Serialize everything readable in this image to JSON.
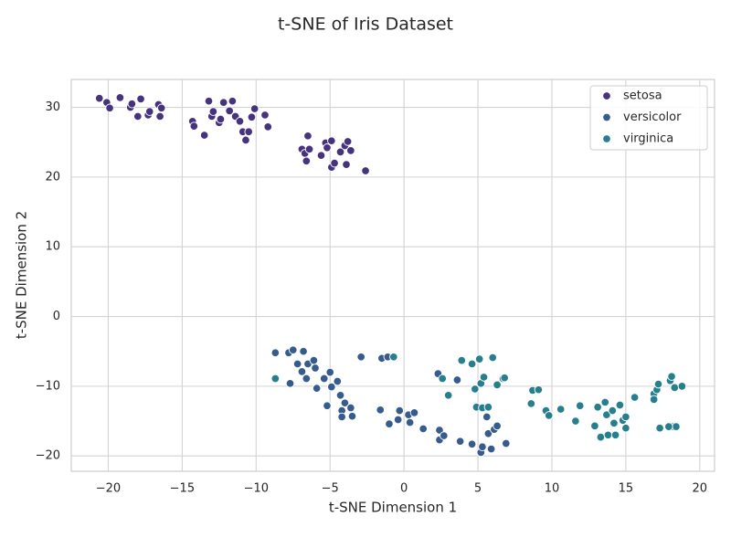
{
  "chart_data": {
    "type": "scatter",
    "title": "t-SNE of Iris Dataset",
    "xlabel": "t-SNE Dimension 1",
    "ylabel": "t-SNE Dimension 2",
    "xlim": [
      -22.5,
      21
    ],
    "ylim": [
      -22.2,
      34
    ],
    "xticks": [
      -20,
      -15,
      -10,
      -5,
      0,
      5,
      10,
      15,
      20
    ],
    "yticks": [
      -20,
      -10,
      0,
      10,
      20,
      30
    ],
    "grid": true,
    "legend_position": "top-right",
    "series": [
      {
        "name": "setosa",
        "color": "#46327e",
        "points": [
          [
            -20.6,
            31.3
          ],
          [
            -20.1,
            30.7
          ],
          [
            -19.9,
            29.9
          ],
          [
            -19.2,
            31.4
          ],
          [
            -18.5,
            30.0
          ],
          [
            -18.4,
            30.5
          ],
          [
            -18.0,
            28.7
          ],
          [
            -17.8,
            31.2
          ],
          [
            -17.3,
            28.9
          ],
          [
            -17.2,
            29.4
          ],
          [
            -16.6,
            30.4
          ],
          [
            -16.5,
            28.7
          ],
          [
            -16.4,
            29.9
          ],
          [
            -14.3,
            28.0
          ],
          [
            -14.2,
            27.3
          ],
          [
            -13.5,
            26.0
          ],
          [
            -13.2,
            30.9
          ],
          [
            -13.0,
            28.7
          ],
          [
            -12.9,
            29.4
          ],
          [
            -12.5,
            27.8
          ],
          [
            -12.4,
            28.3
          ],
          [
            -12.2,
            30.7
          ],
          [
            -11.8,
            29.5
          ],
          [
            -11.6,
            30.9
          ],
          [
            -11.4,
            28.7
          ],
          [
            -11.1,
            28.0
          ],
          [
            -10.9,
            26.5
          ],
          [
            -10.7,
            25.3
          ],
          [
            -10.5,
            26.5
          ],
          [
            -10.3,
            28.6
          ],
          [
            -10.1,
            29.8
          ],
          [
            -9.4,
            28.9
          ],
          [
            -9.2,
            27.2
          ],
          [
            -6.9,
            24.0
          ],
          [
            -6.7,
            23.4
          ],
          [
            -6.6,
            22.3
          ],
          [
            -6.5,
            25.9
          ],
          [
            -6.4,
            24.0
          ],
          [
            -5.6,
            23.1
          ],
          [
            -5.3,
            24.9
          ],
          [
            -5.2,
            24.2
          ],
          [
            -4.9,
            25.2
          ],
          [
            -4.9,
            21.4
          ],
          [
            -4.7,
            22.0
          ],
          [
            -4.3,
            23.6
          ],
          [
            -4.0,
            24.5
          ],
          [
            -3.9,
            21.8
          ],
          [
            -3.8,
            25.1
          ],
          [
            -3.6,
            23.8
          ],
          [
            -2.6,
            20.9
          ]
        ]
      },
      {
        "name": "versicolor",
        "color": "#365c8d",
        "points": [
          [
            -8.7,
            -5.2
          ],
          [
            -7.8,
            -5.2
          ],
          [
            -7.7,
            -9.6
          ],
          [
            -7.5,
            -4.8
          ],
          [
            -7.2,
            -6.8
          ],
          [
            -6.9,
            -7.9
          ],
          [
            -6.8,
            -5.0
          ],
          [
            -6.6,
            -8.9
          ],
          [
            -6.5,
            -6.8
          ],
          [
            -6.1,
            -6.3
          ],
          [
            -6.0,
            -7.4
          ],
          [
            -5.9,
            -10.3
          ],
          [
            -5.4,
            -8.9
          ],
          [
            -5.2,
            -12.8
          ],
          [
            -5.0,
            -8.0
          ],
          [
            -4.9,
            -10.1
          ],
          [
            -4.5,
            -9.3
          ],
          [
            -4.3,
            -11.3
          ],
          [
            -4.2,
            -13.5
          ],
          [
            -4.2,
            -14.4
          ],
          [
            -4.0,
            -12.4
          ],
          [
            -3.6,
            -13.1
          ],
          [
            -3.5,
            -14.3
          ],
          [
            -2.9,
            -5.8
          ],
          [
            -1.6,
            -13.4
          ],
          [
            -1.5,
            -6.0
          ],
          [
            -1.1,
            -5.8
          ],
          [
            -1.0,
            -15.4
          ],
          [
            -0.3,
            -13.5
          ],
          [
            -0.4,
            -14.8
          ],
          [
            0.3,
            -14.1
          ],
          [
            0.4,
            -15.2
          ],
          [
            0.7,
            -13.8
          ],
          [
            1.3,
            -16.1
          ],
          [
            2.3,
            -8.2
          ],
          [
            2.4,
            -16.3
          ],
          [
            2.4,
            -17.7
          ],
          [
            2.7,
            -17.1
          ],
          [
            3.6,
            -9.1
          ],
          [
            3.8,
            -17.9
          ],
          [
            4.6,
            -18.3
          ],
          [
            5.2,
            -19.5
          ],
          [
            5.3,
            -18.7
          ],
          [
            5.6,
            -14.4
          ],
          [
            5.7,
            -16.8
          ],
          [
            5.9,
            -19.0
          ],
          [
            6.1,
            -16.2
          ],
          [
            6.3,
            -15.7
          ],
          [
            6.9,
            -18.2
          ],
          [
            6.7,
            -8.9
          ]
        ]
      },
      {
        "name": "virginica",
        "color": "#277f8e",
        "points": [
          [
            -8.7,
            -8.9
          ],
          [
            -0.7,
            -5.8
          ],
          [
            2.6,
            -8.9
          ],
          [
            3.0,
            -11.3
          ],
          [
            3.9,
            -6.3
          ],
          [
            4.6,
            -6.8
          ],
          [
            4.8,
            -10.4
          ],
          [
            4.9,
            -13.0
          ],
          [
            5.1,
            -6.1
          ],
          [
            5.2,
            -9.6
          ],
          [
            5.3,
            -13.1
          ],
          [
            5.4,
            -8.7
          ],
          [
            5.7,
            -13.0
          ],
          [
            6.0,
            -5.9
          ],
          [
            6.3,
            -9.8
          ],
          [
            6.8,
            -8.8
          ],
          [
            8.6,
            -12.5
          ],
          [
            8.7,
            -10.6
          ],
          [
            9.1,
            -10.5
          ],
          [
            9.6,
            -13.5
          ],
          [
            9.8,
            -14.2
          ],
          [
            10.6,
            -13.3
          ],
          [
            11.6,
            -15.0
          ],
          [
            11.9,
            -12.8
          ],
          [
            12.9,
            -15.7
          ],
          [
            13.1,
            -13.0
          ],
          [
            13.3,
            -17.3
          ],
          [
            13.6,
            -12.3
          ],
          [
            13.7,
            -14.1
          ],
          [
            13.8,
            -17.0
          ],
          [
            14.1,
            -13.5
          ],
          [
            14.2,
            -15.3
          ],
          [
            14.3,
            -17.0
          ],
          [
            14.6,
            -12.7
          ],
          [
            14.8,
            -14.9
          ],
          [
            15.0,
            -14.4
          ],
          [
            15.0,
            -16.0
          ],
          [
            15.6,
            -11.6
          ],
          [
            16.9,
            -11.1
          ],
          [
            16.9,
            -11.9
          ],
          [
            17.1,
            -10.5
          ],
          [
            17.2,
            -9.7
          ],
          [
            17.3,
            -16.0
          ],
          [
            18.0,
            -9.2
          ],
          [
            18.1,
            -8.6
          ],
          [
            18.2,
            -15.8
          ],
          [
            18.3,
            -10.2
          ],
          [
            18.4,
            -15.8
          ],
          [
            18.8,
            -10.0
          ],
          [
            17.9,
            -15.8
          ]
        ]
      }
    ]
  }
}
